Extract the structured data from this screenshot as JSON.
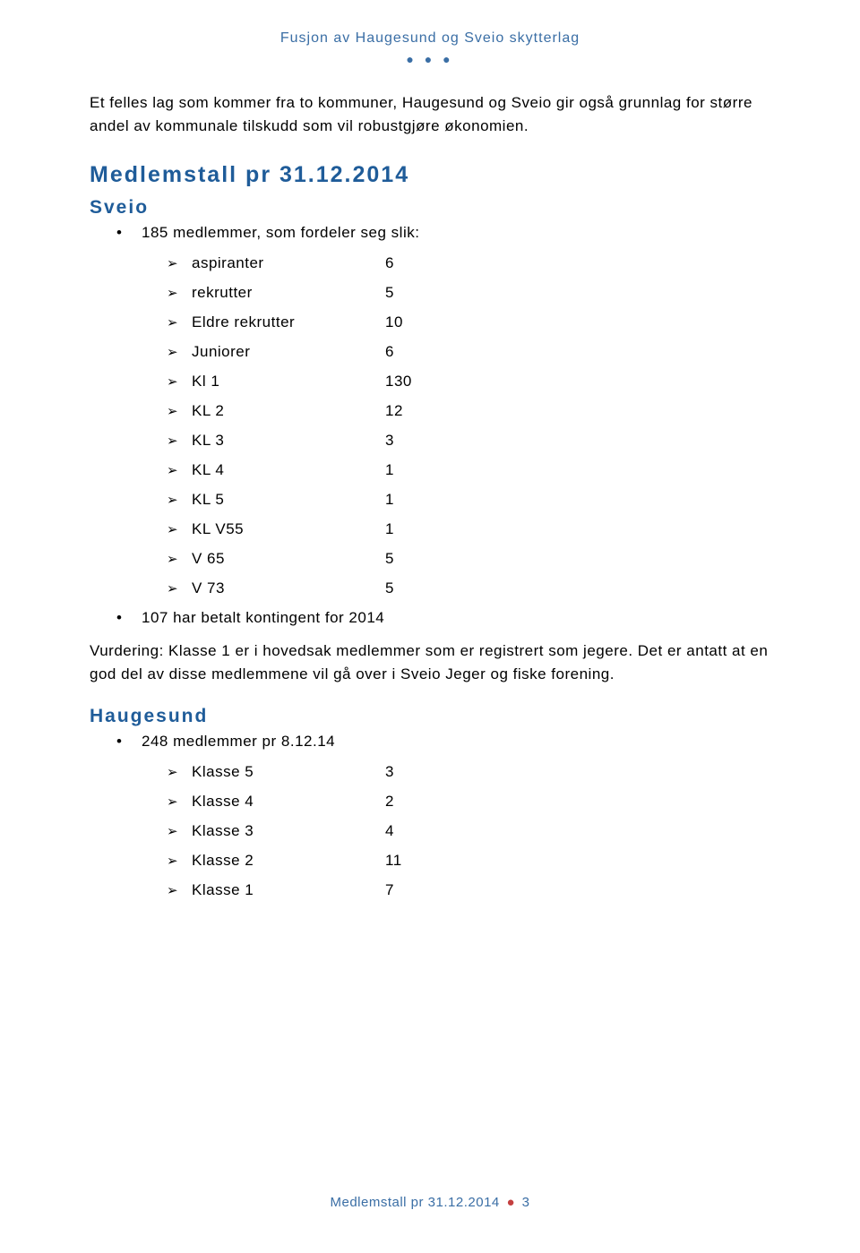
{
  "header": {
    "running_title": "Fusjon av Haugesund og Sveio skytterlag",
    "dots": "● ● ●"
  },
  "intro_paragraph": "Et felles lag som kommer fra to kommuner, Haugesund og Sveio gir også grunnlag for større andel av kommunale tilskudd som vil robustgjøre økonomien.",
  "section1": {
    "title": "Medlemstall pr 31.12.2014",
    "sveio": {
      "heading": "Sveio",
      "bullet1": "185 medlemmer, som fordeler seg slik:",
      "items": [
        {
          "label": "aspiranter",
          "value": "6"
        },
        {
          "label": "rekrutter",
          "value": "5"
        },
        {
          "label": "Eldre rekrutter",
          "value": "10"
        },
        {
          "label": "Juniorer",
          "value": "6"
        },
        {
          "label": "Kl 1",
          "value": "130"
        },
        {
          "label": "KL 2",
          "value": "12"
        },
        {
          "label": "KL 3",
          "value": "3"
        },
        {
          "label": "KL 4",
          "value": "1"
        },
        {
          "label": "KL 5",
          "value": "1"
        },
        {
          "label": "KL V55",
          "value": "1"
        },
        {
          "label": "V 65",
          "value": "5"
        },
        {
          "label": "V 73",
          "value": "5"
        }
      ],
      "bullet2": "107 har betalt kontingent for 2014",
      "paragraph": "Vurdering: Klasse 1 er i hovedsak medlemmer som er registrert som jegere. Det er antatt at en god del av disse medlemmene vil gå over i Sveio Jeger og fiske forening."
    },
    "haugesund": {
      "heading": "Haugesund",
      "bullet1": "248 medlemmer pr 8.12.14",
      "items": [
        {
          "label": "Klasse 5",
          "value": "3"
        },
        {
          "label": "Klasse 4",
          "value": "2"
        },
        {
          "label": "Klasse 3",
          "value": "4"
        },
        {
          "label": "Klasse 2",
          "value": "11"
        },
        {
          "label": "Klasse 1",
          "value": "7"
        }
      ]
    }
  },
  "footer": {
    "text": "Medlemstall pr 31.12.2014",
    "page": "3"
  },
  "markers": {
    "bullet": "•",
    "sub": "➢"
  }
}
